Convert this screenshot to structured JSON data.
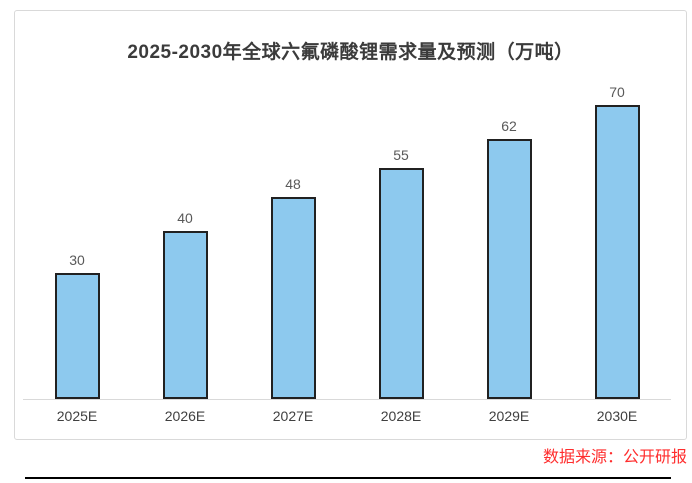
{
  "chart_data": {
    "type": "bar",
    "title": "2025-2030年全球六氟磷酸锂需求量及预测（万吨）",
    "categories": [
      "2025E",
      "2026E",
      "2027E",
      "2028E",
      "2029E",
      "2030E"
    ],
    "values": [
      30,
      40,
      48,
      55,
      62,
      70
    ],
    "xlabel": "",
    "ylabel": "",
    "ylim": [
      0,
      78
    ],
    "grid": false,
    "legend_position": "none",
    "data_labels_shown": true,
    "colors": {
      "bar_fill": "#8dc9ee",
      "bar_border": "#212121",
      "title_text": "#3b3b3b",
      "label_text": "#595959",
      "axis_line": "#d9d9d9",
      "frame_border": "#d9d9d9"
    }
  },
  "footer": {
    "source_label": "数据来源：公开研报",
    "source_color": "#ff2d2d"
  }
}
